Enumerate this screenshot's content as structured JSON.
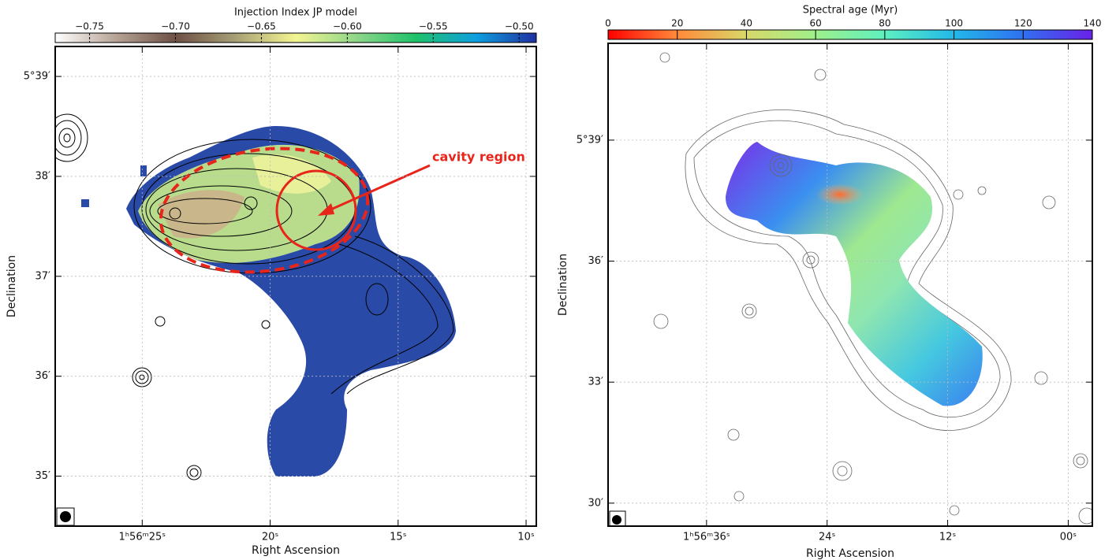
{
  "chart_data": [
    {
      "type": "map",
      "colorbar_label": "Injection Index JP model",
      "clim": [
        -0.77,
        -0.49
      ],
      "cticks": [
        {
          "value": -0.75,
          "label": "−0.75"
        },
        {
          "value": -0.7,
          "label": "−0.70"
        },
        {
          "value": -0.65,
          "label": "−0.65"
        },
        {
          "value": -0.6,
          "label": "−0.60"
        },
        {
          "value": -0.55,
          "label": "−0.55"
        },
        {
          "value": -0.5,
          "label": "−0.50"
        }
      ],
      "colormap": [
        "#ffffff",
        "#b7a497",
        "#6e4f45",
        "#a7a076",
        "#f4f591",
        "#8fd68a",
        "#1fc26a",
        "#0d9fe0",
        "#2030a0"
      ],
      "xlabel": "Right Ascension",
      "ylabel": "Declination",
      "xlim": [
        28.4,
        9.6
      ],
      "xticks": [
        {
          "value": 25,
          "label": "1ʰ56ᵐ25ˢ"
        },
        {
          "value": 20,
          "label": "20ˢ"
        },
        {
          "value": 15,
          "label": "15ˢ"
        },
        {
          "value": 10,
          "label": "10ˢ"
        }
      ],
      "ylim": [
        34.5,
        39.3
      ],
      "yticks": [
        {
          "value": 39,
          "label": "5°39′"
        },
        {
          "value": 38,
          "label": "38′"
        },
        {
          "value": 37,
          "label": "37′"
        },
        {
          "value": 36,
          "label": "36′"
        },
        {
          "value": 35,
          "label": "35′"
        }
      ],
      "grid": true,
      "annotation": "cavity region"
    },
    {
      "type": "map",
      "colorbar_label": "Spectral age (Myr)",
      "clim": [
        0,
        140
      ],
      "cticks": [
        0,
        20,
        40,
        60,
        80,
        100,
        120,
        140
      ],
      "colormap": [
        "#ff0000",
        "#ff8a3a",
        "#d8d86a",
        "#9ef08a",
        "#5ef0c0",
        "#22b8e8",
        "#3070f0",
        "#6a20e8"
      ],
      "xlabel": "Right Ascension",
      "ylabel": "Declination",
      "xlim": [
        45.8,
        -2.4
      ],
      "xticks": [
        {
          "value": 36,
          "label": "1ʰ56ᵐ36ˢ"
        },
        {
          "value": 24,
          "label": "24ˢ"
        },
        {
          "value": 12,
          "label": "12ˢ"
        },
        {
          "value": 0,
          "label": "00ˢ"
        }
      ],
      "ylim": [
        29.43,
        41.4
      ],
      "yticks": [
        {
          "value": 39,
          "label": "5°39′"
        },
        {
          "value": 36,
          "label": "36′"
        },
        {
          "value": 33,
          "label": "33′"
        },
        {
          "value": 30,
          "label": "30′"
        }
      ],
      "grid": true
    }
  ]
}
